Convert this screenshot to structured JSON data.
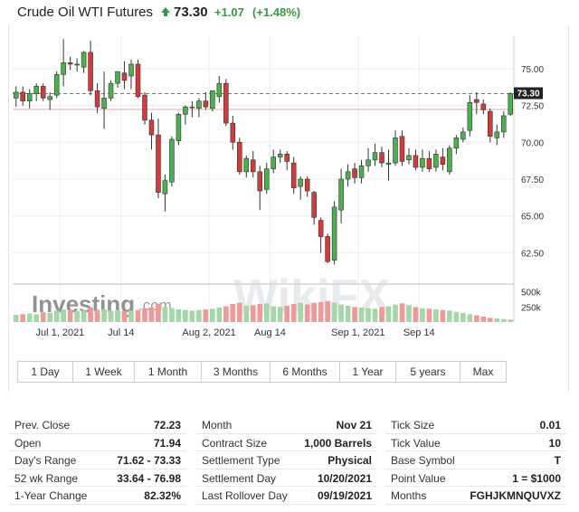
{
  "header": {
    "title": "Crude Oil WTI Futures",
    "last": "73.30",
    "change": "+1.07",
    "change_pct": "(+1.48%)",
    "up_color": "#2e9e3f",
    "arrow_icon": "up-arrow-icon"
  },
  "chart_data": {
    "type": "candlestick",
    "price_axis": {
      "ticks": [
        62.5,
        65.0,
        67.5,
        70.0,
        72.5,
        75.0
      ],
      "tick_labels": [
        "62.50",
        "65.00",
        "67.50",
        "70.00",
        "72.50",
        "75.00"
      ],
      "range": [
        60.5,
        77.2
      ]
    },
    "volume_axis": {
      "tick_labels": [
        "500k",
        "250k"
      ],
      "ticks": [
        500,
        250
      ],
      "range": [
        0,
        600
      ]
    },
    "x_ticks": [
      {
        "label": "Jul 1, 2021",
        "index": 6.5
      },
      {
        "label": "Jul 14",
        "index": 15.5
      },
      {
        "label": "Aug 2, 2021",
        "index": 28.5
      },
      {
        "label": "Aug 14",
        "index": 37.5
      },
      {
        "label": "Sep 1, 2021",
        "index": 50.5
      },
      {
        "label": "Sep 14",
        "index": 59.5
      }
    ],
    "last_price_label": "73.30",
    "last_price": 73.3,
    "prev_close_line": 72.23,
    "up_color": "#4caf50",
    "down_color": "#d23b3b",
    "candles": [
      {
        "o": 73.0,
        "h": 73.8,
        "l": 72.4,
        "c": 73.4
      },
      {
        "o": 73.4,
        "h": 73.8,
        "l": 72.5,
        "c": 72.8
      },
      {
        "o": 72.8,
        "h": 73.6,
        "l": 72.3,
        "c": 73.3
      },
      {
        "o": 73.3,
        "h": 74.0,
        "l": 72.8,
        "c": 73.8
      },
      {
        "o": 73.8,
        "h": 74.0,
        "l": 72.8,
        "c": 73.0
      },
      {
        "o": 72.9,
        "h": 73.4,
        "l": 72.2,
        "c": 73.1
      },
      {
        "o": 73.2,
        "h": 74.8,
        "l": 73.0,
        "c": 74.6
      },
      {
        "o": 74.6,
        "h": 77.0,
        "l": 73.8,
        "c": 75.4
      },
      {
        "o": 75.4,
        "h": 75.8,
        "l": 74.9,
        "c": 75.3
      },
      {
        "o": 75.3,
        "h": 75.7,
        "l": 74.8,
        "c": 75.3
      },
      {
        "o": 75.1,
        "h": 76.2,
        "l": 74.7,
        "c": 76.1
      },
      {
        "o": 76.1,
        "h": 76.9,
        "l": 73.2,
        "c": 73.5
      },
      {
        "o": 73.5,
        "h": 74.0,
        "l": 72.0,
        "c": 72.4
      },
      {
        "o": 72.3,
        "h": 74.8,
        "l": 70.9,
        "c": 73.0
      },
      {
        "o": 73.0,
        "h": 74.2,
        "l": 72.8,
        "c": 74.0
      },
      {
        "o": 74.0,
        "h": 74.8,
        "l": 73.7,
        "c": 74.8
      },
      {
        "o": 74.7,
        "h": 75.5,
        "l": 73.6,
        "c": 74.2
      },
      {
        "o": 74.5,
        "h": 75.6,
        "l": 73.6,
        "c": 75.3
      },
      {
        "o": 75.3,
        "h": 75.6,
        "l": 73.0,
        "c": 73.1
      },
      {
        "o": 73.2,
        "h": 73.4,
        "l": 71.2,
        "c": 71.5
      },
      {
        "o": 71.5,
        "h": 72.0,
        "l": 69.5,
        "c": 70.5
      },
      {
        "o": 70.5,
        "h": 71.6,
        "l": 66.2,
        "c": 66.6
      },
      {
        "o": 66.5,
        "h": 67.8,
        "l": 65.3,
        "c": 67.4
      },
      {
        "o": 67.3,
        "h": 70.4,
        "l": 67.0,
        "c": 70.2
      },
      {
        "o": 70.1,
        "h": 72.0,
        "l": 69.8,
        "c": 71.9
      },
      {
        "o": 71.9,
        "h": 72.5,
        "l": 71.2,
        "c": 72.4
      },
      {
        "o": 72.4,
        "h": 72.8,
        "l": 71.7,
        "c": 72.4
      },
      {
        "o": 72.3,
        "h": 73.0,
        "l": 71.7,
        "c": 72.8
      },
      {
        "o": 72.8,
        "h": 73.4,
        "l": 72.2,
        "c": 72.4
      },
      {
        "o": 72.3,
        "h": 73.5,
        "l": 72.1,
        "c": 73.5
      },
      {
        "o": 73.1,
        "h": 74.5,
        "l": 72.7,
        "c": 74.0
      },
      {
        "o": 74.0,
        "h": 74.3,
        "l": 71.1,
        "c": 71.3
      },
      {
        "o": 71.3,
        "h": 71.8,
        "l": 69.5,
        "c": 70.0
      },
      {
        "o": 70.0,
        "h": 70.3,
        "l": 67.8,
        "c": 68.0
      },
      {
        "o": 68.0,
        "h": 69.1,
        "l": 67.6,
        "c": 68.9
      },
      {
        "o": 68.8,
        "h": 69.4,
        "l": 67.6,
        "c": 68.0
      },
      {
        "o": 68.0,
        "h": 68.4,
        "l": 65.4,
        "c": 66.7
      },
      {
        "o": 66.8,
        "h": 68.6,
        "l": 66.5,
        "c": 68.2
      },
      {
        "o": 68.2,
        "h": 69.5,
        "l": 67.9,
        "c": 69.0
      },
      {
        "o": 69.0,
        "h": 69.5,
        "l": 68.6,
        "c": 69.2
      },
      {
        "o": 69.2,
        "h": 69.4,
        "l": 68.1,
        "c": 68.7
      },
      {
        "o": 68.6,
        "h": 69.0,
        "l": 66.5,
        "c": 66.9
      },
      {
        "o": 67.0,
        "h": 67.7,
        "l": 66.1,
        "c": 67.5
      },
      {
        "o": 67.5,
        "h": 67.7,
        "l": 66.3,
        "c": 66.7
      },
      {
        "o": 66.6,
        "h": 66.7,
        "l": 64.4,
        "c": 64.9
      },
      {
        "o": 64.7,
        "h": 64.9,
        "l": 62.5,
        "c": 63.6
      },
      {
        "o": 63.6,
        "h": 63.8,
        "l": 61.8,
        "c": 61.9
      },
      {
        "o": 62.0,
        "h": 66.0,
        "l": 61.7,
        "c": 65.6
      },
      {
        "o": 65.4,
        "h": 68.2,
        "l": 64.5,
        "c": 67.5
      },
      {
        "o": 67.5,
        "h": 68.5,
        "l": 67.0,
        "c": 68.0
      },
      {
        "o": 68.2,
        "h": 68.6,
        "l": 67.2,
        "c": 67.6
      },
      {
        "o": 67.6,
        "h": 68.8,
        "l": 67.2,
        "c": 68.4
      },
      {
        "o": 68.4,
        "h": 69.6,
        "l": 68.0,
        "c": 68.8
      },
      {
        "o": 68.8,
        "h": 69.9,
        "l": 68.4,
        "c": 69.3
      },
      {
        "o": 69.3,
        "h": 69.7,
        "l": 68.3,
        "c": 68.6
      },
      {
        "o": 68.5,
        "h": 69.5,
        "l": 67.4,
        "c": 68.6
      },
      {
        "o": 68.6,
        "h": 70.8,
        "l": 68.4,
        "c": 70.3
      },
      {
        "o": 70.4,
        "h": 70.8,
        "l": 68.4,
        "c": 68.7
      },
      {
        "o": 68.8,
        "h": 69.6,
        "l": 68.5,
        "c": 69.1
      },
      {
        "o": 69.1,
        "h": 69.5,
        "l": 68.1,
        "c": 68.3
      },
      {
        "o": 68.3,
        "h": 69.5,
        "l": 68.0,
        "c": 68.9
      },
      {
        "o": 68.9,
        "h": 69.4,
        "l": 68.0,
        "c": 68.2
      },
      {
        "o": 68.3,
        "h": 69.5,
        "l": 68.0,
        "c": 69.2
      },
      {
        "o": 69.0,
        "h": 69.6,
        "l": 68.1,
        "c": 68.5
      },
      {
        "o": 68.0,
        "h": 69.8,
        "l": 67.8,
        "c": 69.6
      },
      {
        "o": 69.6,
        "h": 70.5,
        "l": 69.2,
        "c": 70.3
      },
      {
        "o": 70.2,
        "h": 71.0,
        "l": 70.0,
        "c": 70.7
      },
      {
        "o": 70.8,
        "h": 73.2,
        "l": 70.4,
        "c": 72.7
      },
      {
        "o": 72.9,
        "h": 73.4,
        "l": 71.9,
        "c": 72.7
      },
      {
        "o": 72.6,
        "h": 72.9,
        "l": 71.9,
        "c": 72.2
      },
      {
        "o": 72.1,
        "h": 72.3,
        "l": 70.0,
        "c": 70.4
      },
      {
        "o": 70.3,
        "h": 71.2,
        "l": 69.8,
        "c": 70.7
      },
      {
        "o": 70.7,
        "h": 72.1,
        "l": 70.3,
        "c": 71.8
      },
      {
        "o": 71.9,
        "h": 73.4,
        "l": 71.8,
        "c": 73.3
      }
    ],
    "volumes": [
      120,
      130,
      140,
      125,
      160,
      150,
      190,
      210,
      200,
      180,
      190,
      240,
      200,
      210,
      190,
      200,
      180,
      190,
      200,
      230,
      240,
      300,
      250,
      230,
      210,
      200,
      190,
      200,
      210,
      220,
      240,
      260,
      300,
      320,
      270,
      280,
      300,
      310,
      260,
      250,
      270,
      300,
      320,
      290,
      320,
      330,
      350,
      320,
      290,
      270,
      250,
      240,
      230,
      220,
      250,
      260,
      290,
      310,
      280,
      250,
      230,
      220,
      210,
      200,
      190,
      170,
      150,
      130,
      110,
      90,
      70,
      60,
      50,
      40
    ]
  },
  "tabs": [
    {
      "label": "1 Day"
    },
    {
      "label": "1 Week"
    },
    {
      "label": "1 Month"
    },
    {
      "label": "3 Months"
    },
    {
      "label": "6 Months"
    },
    {
      "label": "1 Year"
    },
    {
      "label": "5 years"
    },
    {
      "label": "Max"
    }
  ],
  "stats": {
    "col1": [
      {
        "k": "Prev. Close",
        "v": "72.23"
      },
      {
        "k": "Open",
        "v": "71.94"
      },
      {
        "k": "Day's Range",
        "v": "71.62 - 73.33"
      },
      {
        "k": "52 wk Range",
        "v": "33.64 - 76.98"
      },
      {
        "k": "1-Year Change",
        "v": "82.32%"
      }
    ],
    "col2": [
      {
        "k": "Month",
        "v": "Nov 21"
      },
      {
        "k": "Contract Size",
        "v": "1,000 Barrels"
      },
      {
        "k": "Settlement Type",
        "v": "Physical"
      },
      {
        "k": "Settlement Day",
        "v": "10/20/2021"
      },
      {
        "k": "Last Rollover Day",
        "v": "09/19/2021"
      }
    ],
    "col3": [
      {
        "k": "Tick Size",
        "v": "0.01"
      },
      {
        "k": "Tick Value",
        "v": "10"
      },
      {
        "k": "Base Symbol",
        "v": "T"
      },
      {
        "k": "Point Value",
        "v": "1 = $1000"
      },
      {
        "k": "Months",
        "v": "FGHJKMNQUVXZ"
      }
    ]
  },
  "watermark": {
    "brand": "Investing",
    "brand_suffix": ".com",
    "overlay": "WikiFX"
  }
}
